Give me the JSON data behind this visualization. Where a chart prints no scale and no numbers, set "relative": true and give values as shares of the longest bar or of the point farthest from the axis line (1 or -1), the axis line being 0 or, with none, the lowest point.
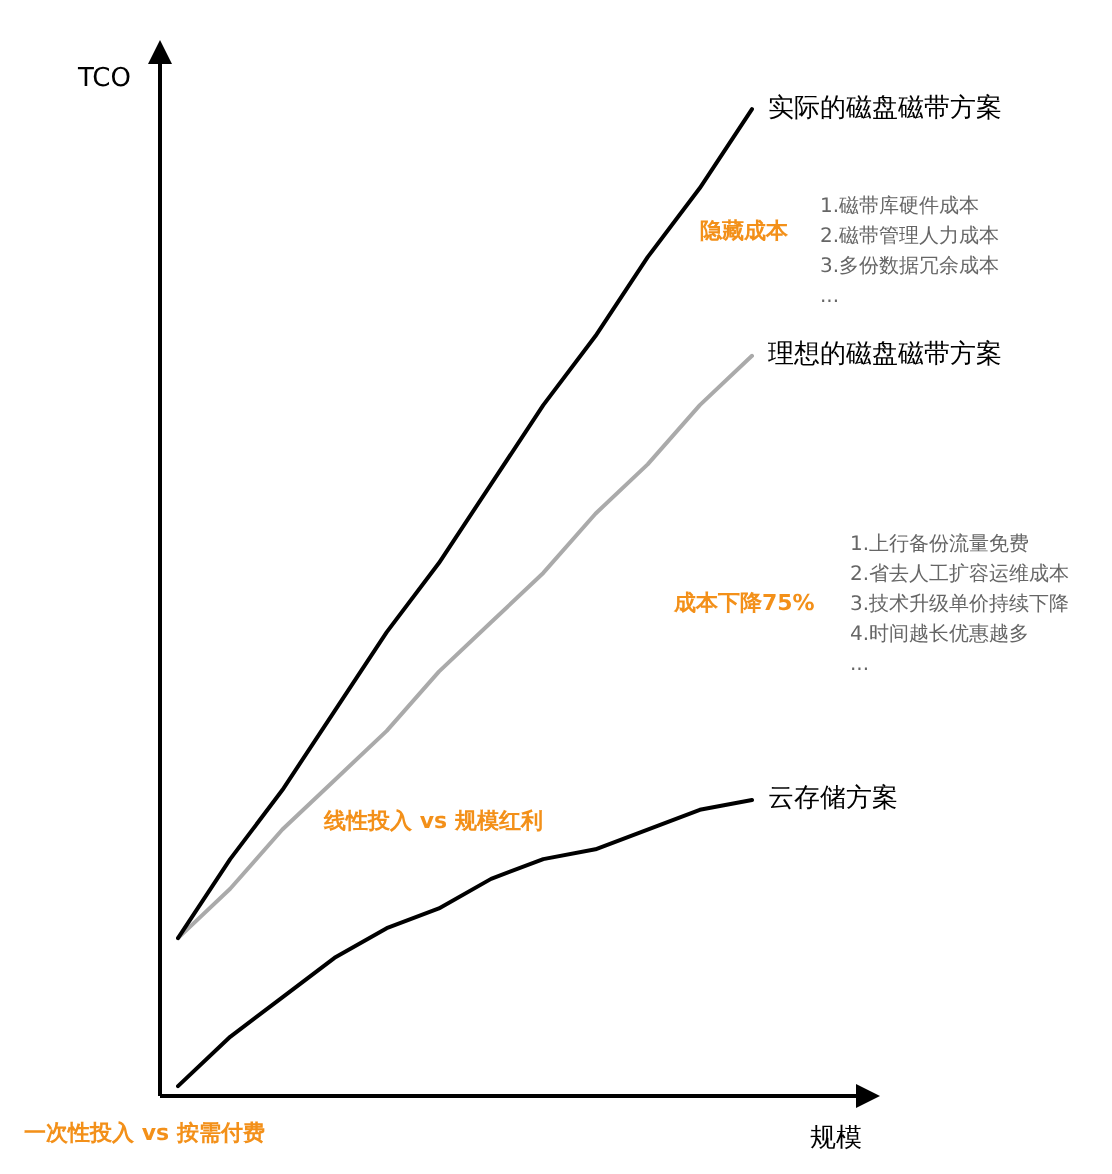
{
  "chart_data": {
    "type": "line",
    "relative": true,
    "xlabel": "规模",
    "ylabel": "TCO",
    "categories": [
      null,
      null,
      null,
      null,
      null,
      null,
      null,
      null,
      null,
      null,
      null,
      null
    ],
    "tick_labels": false,
    "grid": false,
    "legend": false,
    "marker": "none",
    "line_style": "solid",
    "series": [
      {
        "name": "实际的磁盘磁带方案",
        "color": "#000000",
        "values": [
          0.16,
          0.24,
          0.31,
          0.39,
          0.47,
          0.54,
          0.62,
          0.7,
          0.77,
          0.85,
          0.92,
          1
        ]
      },
      {
        "name": "理想的磁盘磁带方案",
        "color": "#aaaaaa",
        "values": [
          0.16,
          0.21,
          0.27,
          0.32,
          0.37,
          0.43,
          0.48,
          0.53,
          0.59,
          0.64,
          0.7,
          0.75
        ]
      },
      {
        "name": "云存储方案",
        "color": "#000000",
        "values": [
          0.01,
          0.06,
          0.1,
          0.14,
          0.17,
          0.19,
          0.22,
          0.24,
          0.25,
          0.27,
          0.29,
          0.3
        ]
      }
    ],
    "annotations": [
      "隐藏成本",
      "1.磁带库硬件成本\n2.磁带管理人力成本\n3.多份数据冗余成本\n...",
      "成本下降75%",
      "1.上行备份流量免费\n2.省去人工扩容运维成本\n3.技术升级单价持续下降\n4.时间越长优惠越多\n...",
      "线性投入 vs 规模红利",
      "一次性投入 vs 按需付费"
    ]
  }
}
